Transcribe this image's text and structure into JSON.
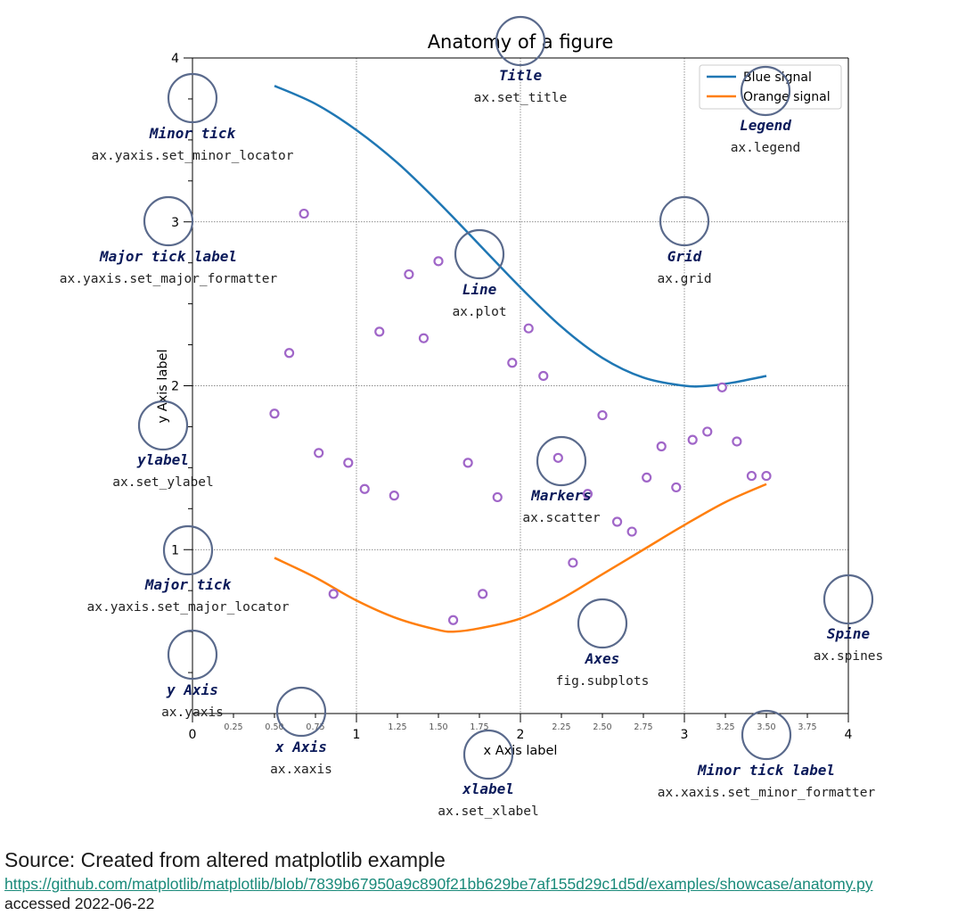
{
  "figure_title": "Anatomy of a figure",
  "legend": [
    "Blue signal",
    "Orange signal"
  ],
  "colors": {
    "blue": "#1f77b4",
    "orange": "#ff7f0e",
    "markers": "#a066c8",
    "annotation_circle": "#5a6a8c",
    "annotation_title": "#0a1a5a",
    "link": "#1a8a7a"
  },
  "chart_data": {
    "type": "line",
    "title": "Anatomy of a figure",
    "xlabel": "x Axis label",
    "ylabel": "y Axis label",
    "xlim": [
      0,
      4
    ],
    "ylim": [
      0,
      4
    ],
    "x_major_ticks": [
      0,
      1,
      2,
      3,
      4
    ],
    "x_minor_tick_labels": [
      "0.25",
      "0.50",
      "0.75",
      "1.25",
      "1.50",
      "1.75",
      "2.25",
      "2.50",
      "2.75",
      "3.25",
      "3.50",
      "3.75"
    ],
    "y_major_ticks": [
      1,
      2,
      3,
      4
    ],
    "grid": true,
    "legend_position": "top-right",
    "series": [
      {
        "name": "Blue signal",
        "type": "line",
        "x": [
          0.5,
          0.75,
          1.0,
          1.25,
          1.5,
          1.75,
          2.0,
          2.25,
          2.5,
          2.75,
          3.0,
          3.15,
          3.3,
          3.5
        ],
        "y": [
          3.83,
          3.72,
          3.56,
          3.36,
          3.12,
          2.86,
          2.6,
          2.36,
          2.17,
          2.05,
          2.0,
          2.0,
          2.02,
          2.06
        ]
      },
      {
        "name": "Orange signal",
        "type": "line",
        "x": [
          0.5,
          0.75,
          1.0,
          1.25,
          1.5,
          1.6,
          1.75,
          2.0,
          2.25,
          2.5,
          2.75,
          3.0,
          3.25,
          3.5
        ],
        "y": [
          0.95,
          0.83,
          0.69,
          0.58,
          0.51,
          0.5,
          0.52,
          0.58,
          0.7,
          0.85,
          1.0,
          1.15,
          1.29,
          1.4
        ]
      },
      {
        "name": "",
        "type": "scatter",
        "x": [
          0.5,
          0.59,
          0.68,
          0.77,
          0.86,
          0.95,
          1.05,
          1.14,
          1.23,
          1.32,
          1.41,
          1.5,
          1.59,
          1.68,
          1.77,
          1.86,
          1.95,
          2.05,
          2.14,
          2.23,
          2.32,
          2.41,
          2.5,
          2.59,
          2.68,
          2.77,
          2.86,
          2.95,
          3.05,
          3.14,
          3.23,
          3.32,
          3.41,
          3.5
        ],
        "y": [
          1.83,
          2.2,
          3.05,
          1.59,
          0.73,
          1.53,
          1.37,
          2.33,
          1.33,
          2.68,
          2.29,
          2.76,
          0.57,
          1.53,
          0.73,
          1.32,
          2.14,
          2.35,
          2.06,
          1.56,
          0.92,
          1.34,
          1.82,
          1.17,
          1.11,
          1.44,
          1.63,
          1.38,
          1.67,
          1.72,
          1.99,
          1.66,
          1.45,
          1.45
        ]
      }
    ]
  },
  "annotations": [
    {
      "title": "Title",
      "code": "ax.set_title"
    },
    {
      "title": "Legend",
      "code": "ax.legend"
    },
    {
      "title": "Minor tick",
      "code": "ax.yaxis.set_minor_locator"
    },
    {
      "title": "Major tick label",
      "code": "ax.yaxis.set_major_formatter"
    },
    {
      "title": "Line",
      "code": "ax.plot"
    },
    {
      "title": "Grid",
      "code": "ax.grid"
    },
    {
      "title": "ylabel",
      "code": "ax.set_ylabel"
    },
    {
      "title": "Markers",
      "code": "ax.scatter"
    },
    {
      "title": "Major tick",
      "code": "ax.yaxis.set_major_locator"
    },
    {
      "title": "Spine",
      "code": "ax.spines"
    },
    {
      "title": "Axes",
      "code": "fig.subplots"
    },
    {
      "title": "y Axis",
      "code": "ax.yaxis"
    },
    {
      "title": "x Axis",
      "code": "ax.xaxis"
    },
    {
      "title": "xlabel",
      "code": "ax.set_xlabel"
    },
    {
      "title": "Minor tick label",
      "code": "ax.xaxis.set_minor_formatter"
    }
  ],
  "source": {
    "line": "Source: Created from altered matplotlib example",
    "link": "https://github.com/matplotlib/matplotlib/blob/7839b67950a9c890f21bb629be7af155d29c1d5d/examples/showcase/anatomy.py",
    "accessed": "accessed 2022-06-22"
  }
}
